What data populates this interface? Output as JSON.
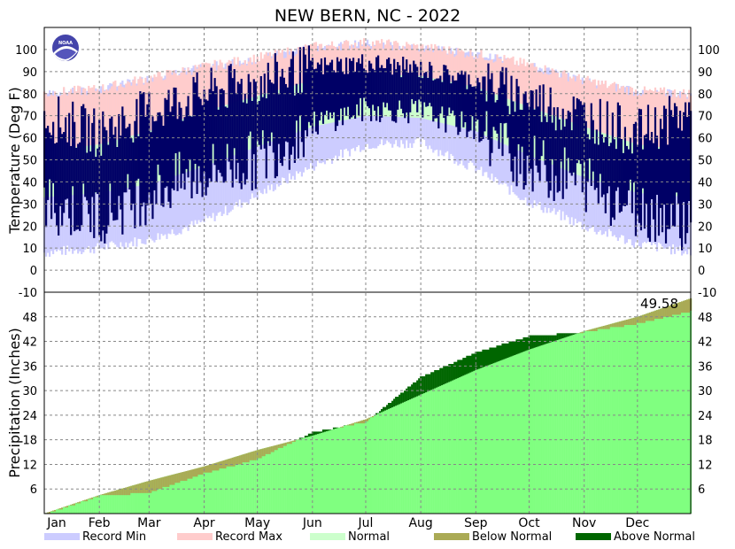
{
  "chart_data": {
    "type": "area",
    "title": "NEW BERN, NC - 2022",
    "x_ticks": [
      "Jan",
      "Feb",
      "Mar",
      "Apr",
      "May",
      "Jun",
      "Jul",
      "Aug",
      "Sep",
      "Oct",
      "Nov",
      "Dec"
    ],
    "panels": [
      {
        "name": "temperature",
        "ylabel": "Temperature (Deg F)",
        "ylim": [
          -10,
          110
        ],
        "y_ticks": [
          -10,
          0,
          10,
          20,
          30,
          40,
          50,
          60,
          70,
          80,
          90,
          100
        ],
        "day_of_year": [
          1,
          32,
          60,
          91,
          121,
          152,
          182,
          213,
          244,
          274,
          305,
          335,
          365
        ],
        "record_min": [
          8,
          10,
          14,
          22,
          34,
          47,
          57,
          58,
          46,
          31,
          20,
          12,
          8
        ],
        "record_max": [
          80,
          82,
          87,
          92,
          96,
          101,
          103,
          101,
          98,
          93,
          86,
          81,
          80
        ],
        "normal_low": [
          33,
          35,
          39,
          47,
          56,
          65,
          70,
          69,
          63,
          52,
          42,
          35,
          33
        ],
        "normal_high": [
          54,
          57,
          63,
          72,
          79,
          86,
          89,
          88,
          83,
          74,
          65,
          57,
          54
        ],
        "observed_low": [
          30,
          25,
          35,
          44,
          50,
          66,
          73,
          72,
          64,
          48,
          40,
          28,
          22
        ],
        "observed_high": [
          70,
          62,
          72,
          80,
          85,
          92,
          94,
          91,
          86,
          78,
          70,
          62,
          72
        ],
        "grid": true
      },
      {
        "name": "precipitation",
        "ylabel": "Precipitation (Inches)",
        "ylim": [
          0,
          54
        ],
        "y_ticks": [
          6,
          12,
          18,
          24,
          30,
          36,
          42,
          48
        ],
        "day_of_year": [
          1,
          32,
          60,
          91,
          121,
          152,
          182,
          213,
          244,
          274,
          305,
          335,
          365
        ],
        "normal_cumulative": [
          0,
          4.5,
          8.0,
          11.5,
          15.5,
          19.0,
          23.0,
          29.0,
          35.0,
          40.0,
          44.5,
          48.0,
          52.5
        ],
        "observed_cumulative": [
          0,
          4.5,
          5.3,
          10.0,
          13.5,
          20.0,
          22.5,
          33.5,
          39.5,
          43.5,
          44.5,
          46.5,
          49.58
        ],
        "annotation": "49.58",
        "grid": true
      }
    ],
    "legend": [
      {
        "label": "Record Min",
        "color": "#ccccff"
      },
      {
        "label": "Record Max",
        "color": "#ffcccc"
      },
      {
        "label": "Normal",
        "color": "#ccffcc"
      },
      {
        "label": "Below Normal",
        "color": "#aaaa55"
      },
      {
        "label": "Above Normal",
        "color": "#006600"
      }
    ],
    "colors": {
      "observed_temperature": "#000066",
      "normal_precipitation_fill": "#80ff80",
      "below_normal": "#aaaa55",
      "above_normal": "#006600"
    }
  }
}
